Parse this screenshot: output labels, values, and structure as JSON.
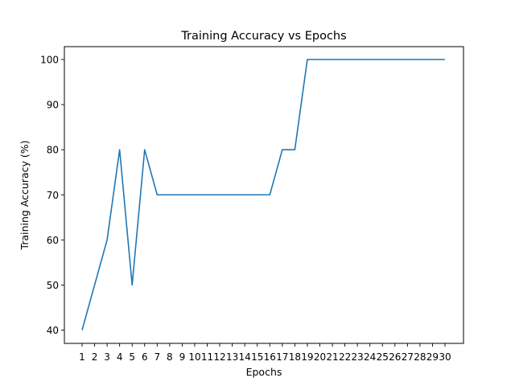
{
  "chart_data": {
    "type": "line",
    "title": "Training Accuracy vs Epochs",
    "xlabel": "Epochs",
    "ylabel": "Training Accuracy (%)",
    "x": [
      1,
      2,
      3,
      4,
      5,
      6,
      7,
      8,
      9,
      10,
      11,
      12,
      13,
      14,
      15,
      16,
      17,
      18,
      19,
      20,
      21,
      22,
      23,
      24,
      25,
      26,
      27,
      28,
      29,
      30
    ],
    "y": [
      40,
      50,
      60,
      80,
      50,
      80,
      70,
      70,
      70,
      70,
      70,
      70,
      70,
      70,
      70,
      70,
      80,
      80,
      100,
      100,
      100,
      100,
      100,
      100,
      100,
      100,
      100,
      100,
      100,
      100
    ],
    "y_ticks": [
      40,
      50,
      60,
      70,
      80,
      90,
      100
    ],
    "x_ticks": [
      1,
      2,
      3,
      4,
      5,
      6,
      7,
      8,
      9,
      10,
      11,
      12,
      13,
      14,
      15,
      16,
      17,
      18,
      19,
      20,
      21,
      22,
      23,
      24,
      25,
      26,
      27,
      28,
      29,
      30
    ],
    "grid": false,
    "line_color": "#1f77b4"
  }
}
